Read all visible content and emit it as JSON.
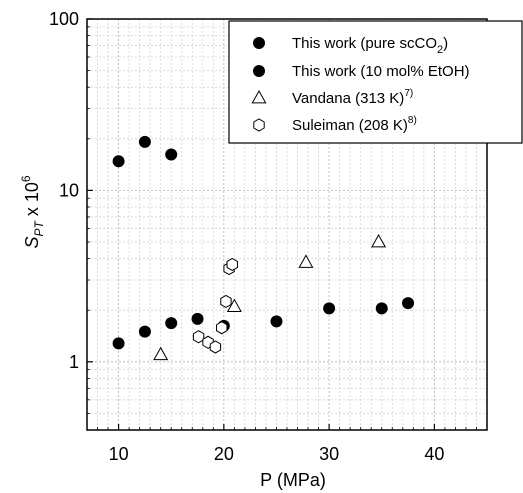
{
  "chart_data": {
    "type": "scatter",
    "xlabel": "P (MPa)",
    "ylabel_main": "S",
    "ylabel_sub": "PT",
    "ylabel_tail": " x 10",
    "ylabel_sup": "6",
    "xlim": [
      7,
      45
    ],
    "ylim": [
      0.4,
      100
    ],
    "yscale": "log",
    "grid": true,
    "legend_position": "top-right",
    "x_ticks": [
      10,
      20,
      30,
      40
    ],
    "x_tick_labels": [
      "10",
      "20",
      "30",
      "40"
    ],
    "y_ticks": [
      1,
      10,
      100
    ],
    "y_tick_labels": [
      "1",
      "10",
      "100"
    ],
    "series": [
      {
        "legend_main": "This work (pure scCO",
        "legend_sub": "2",
        "legend_tail": ")",
        "marker": "filled-circle",
        "points": [
          {
            "x": 10,
            "y": 1.28
          },
          {
            "x": 12.5,
            "y": 1.5
          },
          {
            "x": 15,
            "y": 1.68
          },
          {
            "x": 17.5,
            "y": 1.78
          },
          {
            "x": 20,
            "y": 1.62
          },
          {
            "x": 25,
            "y": 1.72
          },
          {
            "x": 30,
            "y": 2.05
          },
          {
            "x": 35,
            "y": 2.05
          },
          {
            "x": 37.5,
            "y": 2.2
          }
        ]
      },
      {
        "legend_main": "This work (10 mol% EtOH)",
        "marker": "filled-circle",
        "points": [
          {
            "x": 10,
            "y": 14.8
          },
          {
            "x": 12.5,
            "y": 19.2
          },
          {
            "x": 15,
            "y": 16.2
          }
        ]
      },
      {
        "legend_main": "Vandana (313 K)",
        "legend_sup": "7)",
        "marker": "open-triangle",
        "points": [
          {
            "x": 14,
            "y": 1.1
          },
          {
            "x": 21,
            "y": 2.1
          },
          {
            "x": 27.8,
            "y": 3.8
          },
          {
            "x": 34.7,
            "y": 5.0
          }
        ]
      },
      {
        "legend_main": "Suleiman (208 K)",
        "legend_sup": "8)",
        "marker": "open-hexagon",
        "points": [
          {
            "x": 17.6,
            "y": 1.4
          },
          {
            "x": 18.5,
            "y": 1.3
          },
          {
            "x": 19.2,
            "y": 1.22
          },
          {
            "x": 19.8,
            "y": 1.58
          },
          {
            "x": 20.2,
            "y": 2.25
          },
          {
            "x": 20.5,
            "y": 3.5
          },
          {
            "x": 20.8,
            "y": 3.7
          }
        ]
      }
    ]
  }
}
